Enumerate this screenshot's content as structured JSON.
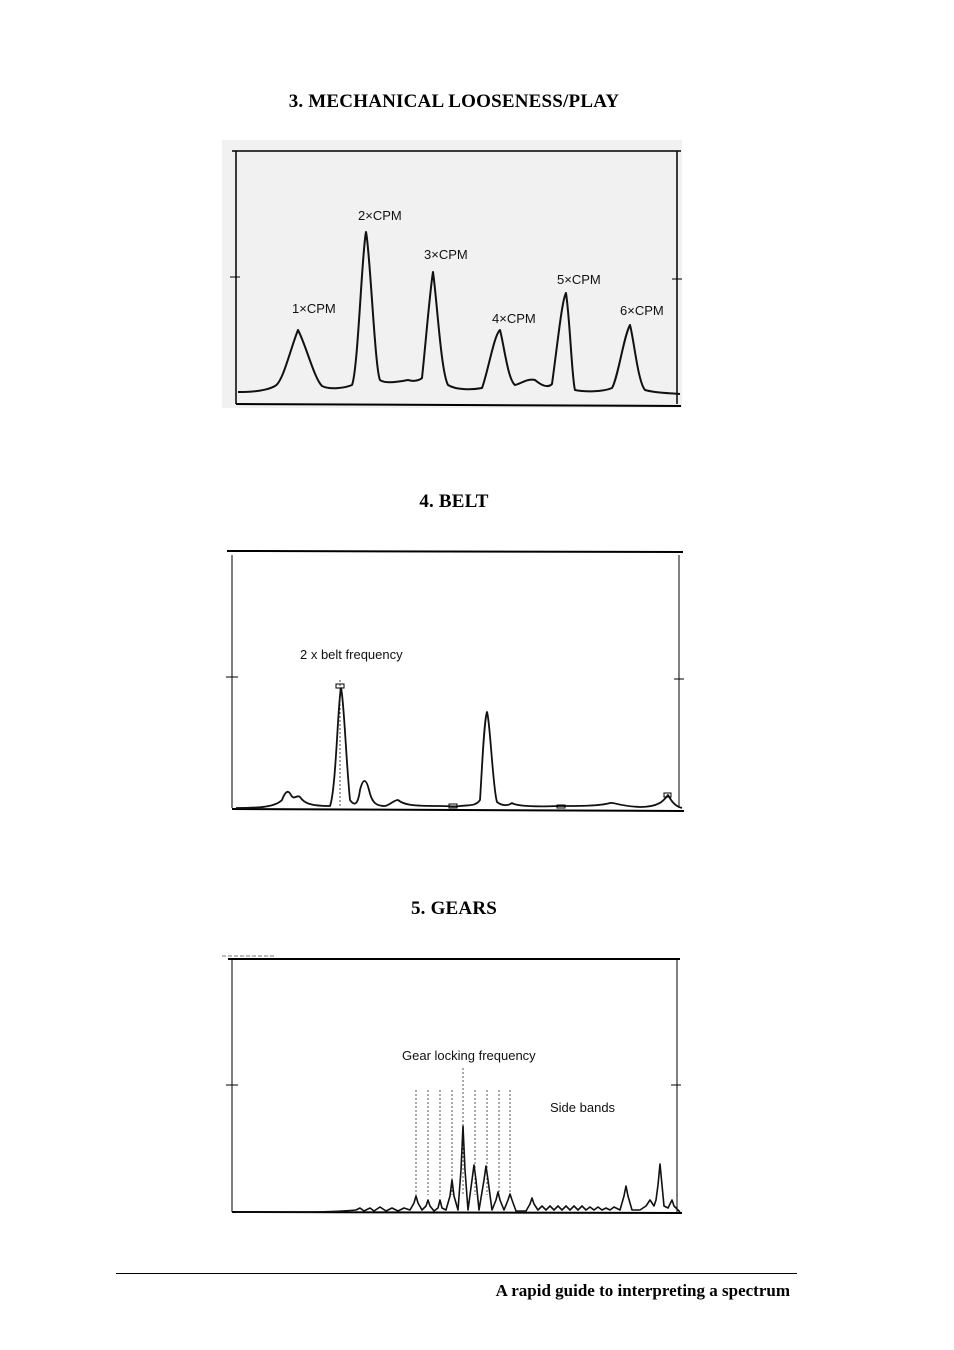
{
  "sections": [
    {
      "title": "3.  MECHANICAL LOOSENESS/PLAY",
      "annotations": [
        "1×CPM",
        "2×CPM",
        "3×CPM",
        "4×CPM",
        "5×CPM",
        "6×CPM"
      ]
    },
    {
      "title": "4.  BELT",
      "annotations": [
        "2 x belt frequency"
      ]
    },
    {
      "title": "5.  GEARS",
      "annotations": [
        "Gear locking frequency",
        "Side bands"
      ]
    }
  ],
  "footer": {
    "text": "A rapid guide to interpreting a spectrum"
  }
}
